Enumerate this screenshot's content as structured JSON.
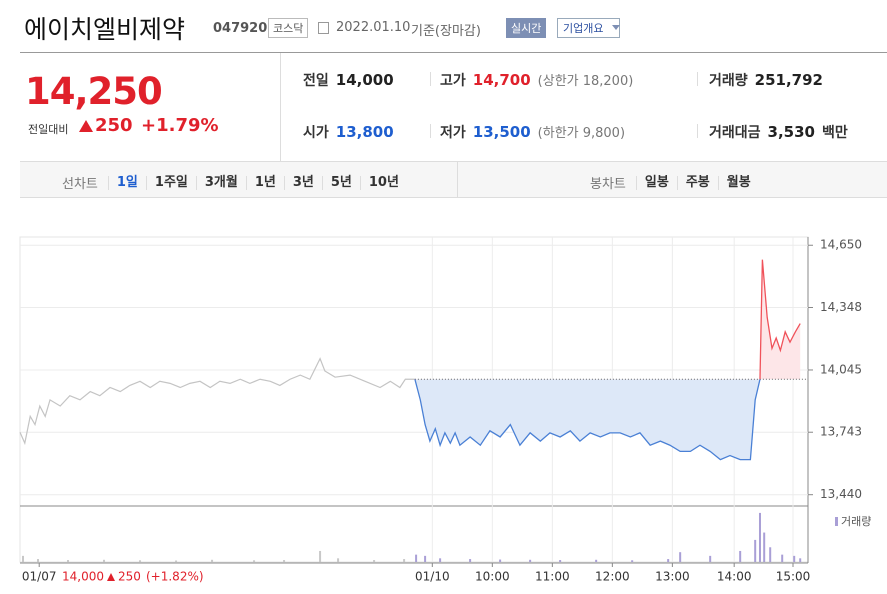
{
  "header": {
    "title": "에이치엘비제약",
    "code": "047920",
    "market": "코스닥",
    "date": "2022.01.10",
    "basis": "기준(장마감)",
    "buttons": [
      "실시간",
      "기업개요"
    ]
  },
  "quote": {
    "price": "14,250",
    "change_label": "전일대비",
    "change": "250",
    "change_pct": "+1.79%"
  },
  "stats": [
    {
      "label": "전일",
      "value": "14,000"
    },
    {
      "label": "고가",
      "value": "14,700",
      "note": "(상한가 18,200)"
    },
    {
      "label": "거래량",
      "value": "251,792"
    },
    {
      "label": "시가",
      "value": "13,800"
    },
    {
      "label": "저가",
      "value": "13,500",
      "note": "(하한가 9,800)"
    },
    {
      "label": "거래대금",
      "value": "3,530",
      "unit": "백만"
    }
  ],
  "tabs": {
    "line_label": "선차트",
    "line": [
      "1일",
      "1주일",
      "3개월",
      "1년",
      "3년",
      "5년",
      "10년"
    ],
    "selected": 0,
    "candle_label": "봉차트",
    "candle": [
      "일봉",
      "주봉",
      "월봉"
    ]
  },
  "chart_data": {
    "type": "line",
    "xlim": [
      0,
      13.13
    ],
    "xticks": [
      {
        "value": 0.32,
        "label": "01/07"
      },
      {
        "value": 6.87,
        "label": "01/10"
      },
      {
        "value": 7.87,
        "label": "10:00"
      },
      {
        "value": 8.87,
        "label": "11:00"
      },
      {
        "value": 9.87,
        "label": "12:00"
      },
      {
        "value": 10.87,
        "label": "13:00"
      },
      {
        "value": 11.9,
        "label": "14:00"
      },
      {
        "value": 12.88,
        "label": "15:00"
      }
    ],
    "ylim": [
      13390,
      14690
    ],
    "yticks": [
      {
        "value": 14650,
        "label": "14,650"
      },
      {
        "value": 14348,
        "label": "14,348"
      },
      {
        "value": 14045,
        "label": "14,045"
      },
      {
        "value": 13743,
        "label": "13,743"
      },
      {
        "value": 13440,
        "label": "13,440"
      }
    ],
    "grid": true,
    "reference": 14000,
    "series": [
      {
        "color": "#c4c4c4",
        "x": [
          0,
          0.08,
          0.17,
          0.25,
          0.33,
          0.42,
          0.5,
          0.67,
          0.83,
          1.0,
          1.17,
          1.33,
          1.5,
          1.67,
          1.83,
          2.0,
          2.17,
          2.33,
          2.5,
          2.67,
          2.83,
          3.0,
          3.17,
          3.33,
          3.5,
          3.67,
          3.83,
          4.0,
          4.17,
          4.33,
          4.5,
          4.67,
          4.83,
          5.0,
          5.08,
          5.25,
          5.5,
          5.75,
          6.0,
          6.17,
          6.33,
          6.42,
          6.58
        ],
        "values": [
          13743,
          13690,
          13820,
          13780,
          13870,
          13820,
          13900,
          13870,
          13920,
          13900,
          13940,
          13920,
          13960,
          13940,
          13970,
          13990,
          13960,
          13990,
          13980,
          13960,
          13980,
          13990,
          13960,
          13990,
          13980,
          14000,
          13980,
          14000,
          13990,
          13970,
          14000,
          14020,
          14000,
          14100,
          14040,
          14010,
          14020,
          13990,
          13960,
          13990,
          13960,
          14000,
          14000
        ]
      },
      {
        "color": "#4a80d5",
        "color_up": "#f0525a",
        "area_color": "#dde8f8",
        "area_color_up": "#fde6e8",
        "x": [
          6.58,
          6.67,
          6.75,
          6.83,
          6.92,
          7.0,
          7.08,
          7.17,
          7.25,
          7.33,
          7.5,
          7.67,
          7.83,
          8.0,
          8.17,
          8.33,
          8.5,
          8.67,
          8.83,
          9.0,
          9.17,
          9.33,
          9.5,
          9.67,
          9.83,
          10.0,
          10.17,
          10.33,
          10.5,
          10.67,
          10.83,
          11.0,
          11.17,
          11.33,
          11.5,
          11.67,
          11.83,
          12.0,
          12.17,
          12.25,
          12.33,
          12.37,
          12.45,
          12.53,
          12.6,
          12.67,
          12.75,
          12.83,
          12.92,
          13.0
        ],
        "values": [
          14000,
          13900,
          13780,
          13700,
          13760,
          13680,
          13740,
          13690,
          13740,
          13680,
          13720,
          13680,
          13750,
          13720,
          13780,
          13680,
          13740,
          13700,
          13740,
          13720,
          13750,
          13700,
          13740,
          13720,
          13740,
          13740,
          13720,
          13740,
          13680,
          13700,
          13680,
          13650,
          13650,
          13680,
          13650,
          13610,
          13630,
          13610,
          13610,
          13900,
          14000,
          14580,
          14300,
          14150,
          14200,
          14140,
          14230,
          14180,
          14230,
          14270
        ]
      }
    ],
    "volume": {
      "name": "거래량",
      "ylim": [
        0,
        22000
      ],
      "series": [
        {
          "color": "#c8c8c8",
          "x": [
            0.05,
            0.3,
            0.8,
            1.4,
            2.0,
            2.6,
            3.2,
            3.9,
            4.4,
            5.0,
            5.3,
            5.9,
            6.4
          ],
          "values": [
            2500,
            1200,
            800,
            900,
            700,
            600,
            900,
            700,
            800,
            4500,
            1500,
            800,
            1200
          ]
        },
        {
          "color": "#a99fd6",
          "x": [
            6.6,
            6.75,
            7.0,
            7.5,
            8.0,
            8.5,
            9.0,
            9.6,
            10.2,
            10.8,
            11.0,
            11.5,
            12.0,
            12.25,
            12.33,
            12.4,
            12.5,
            12.7,
            12.9,
            13.0
          ],
          "values": [
            3000,
            2500,
            1500,
            1200,
            1000,
            900,
            800,
            900,
            700,
            1200,
            4000,
            2500,
            4500,
            9000,
            20000,
            12000,
            6000,
            3000,
            2500,
            1500
          ]
        }
      ]
    }
  },
  "footer": {
    "close": "14,000",
    "change": "250",
    "change_pct": "(+1.82%)"
  }
}
